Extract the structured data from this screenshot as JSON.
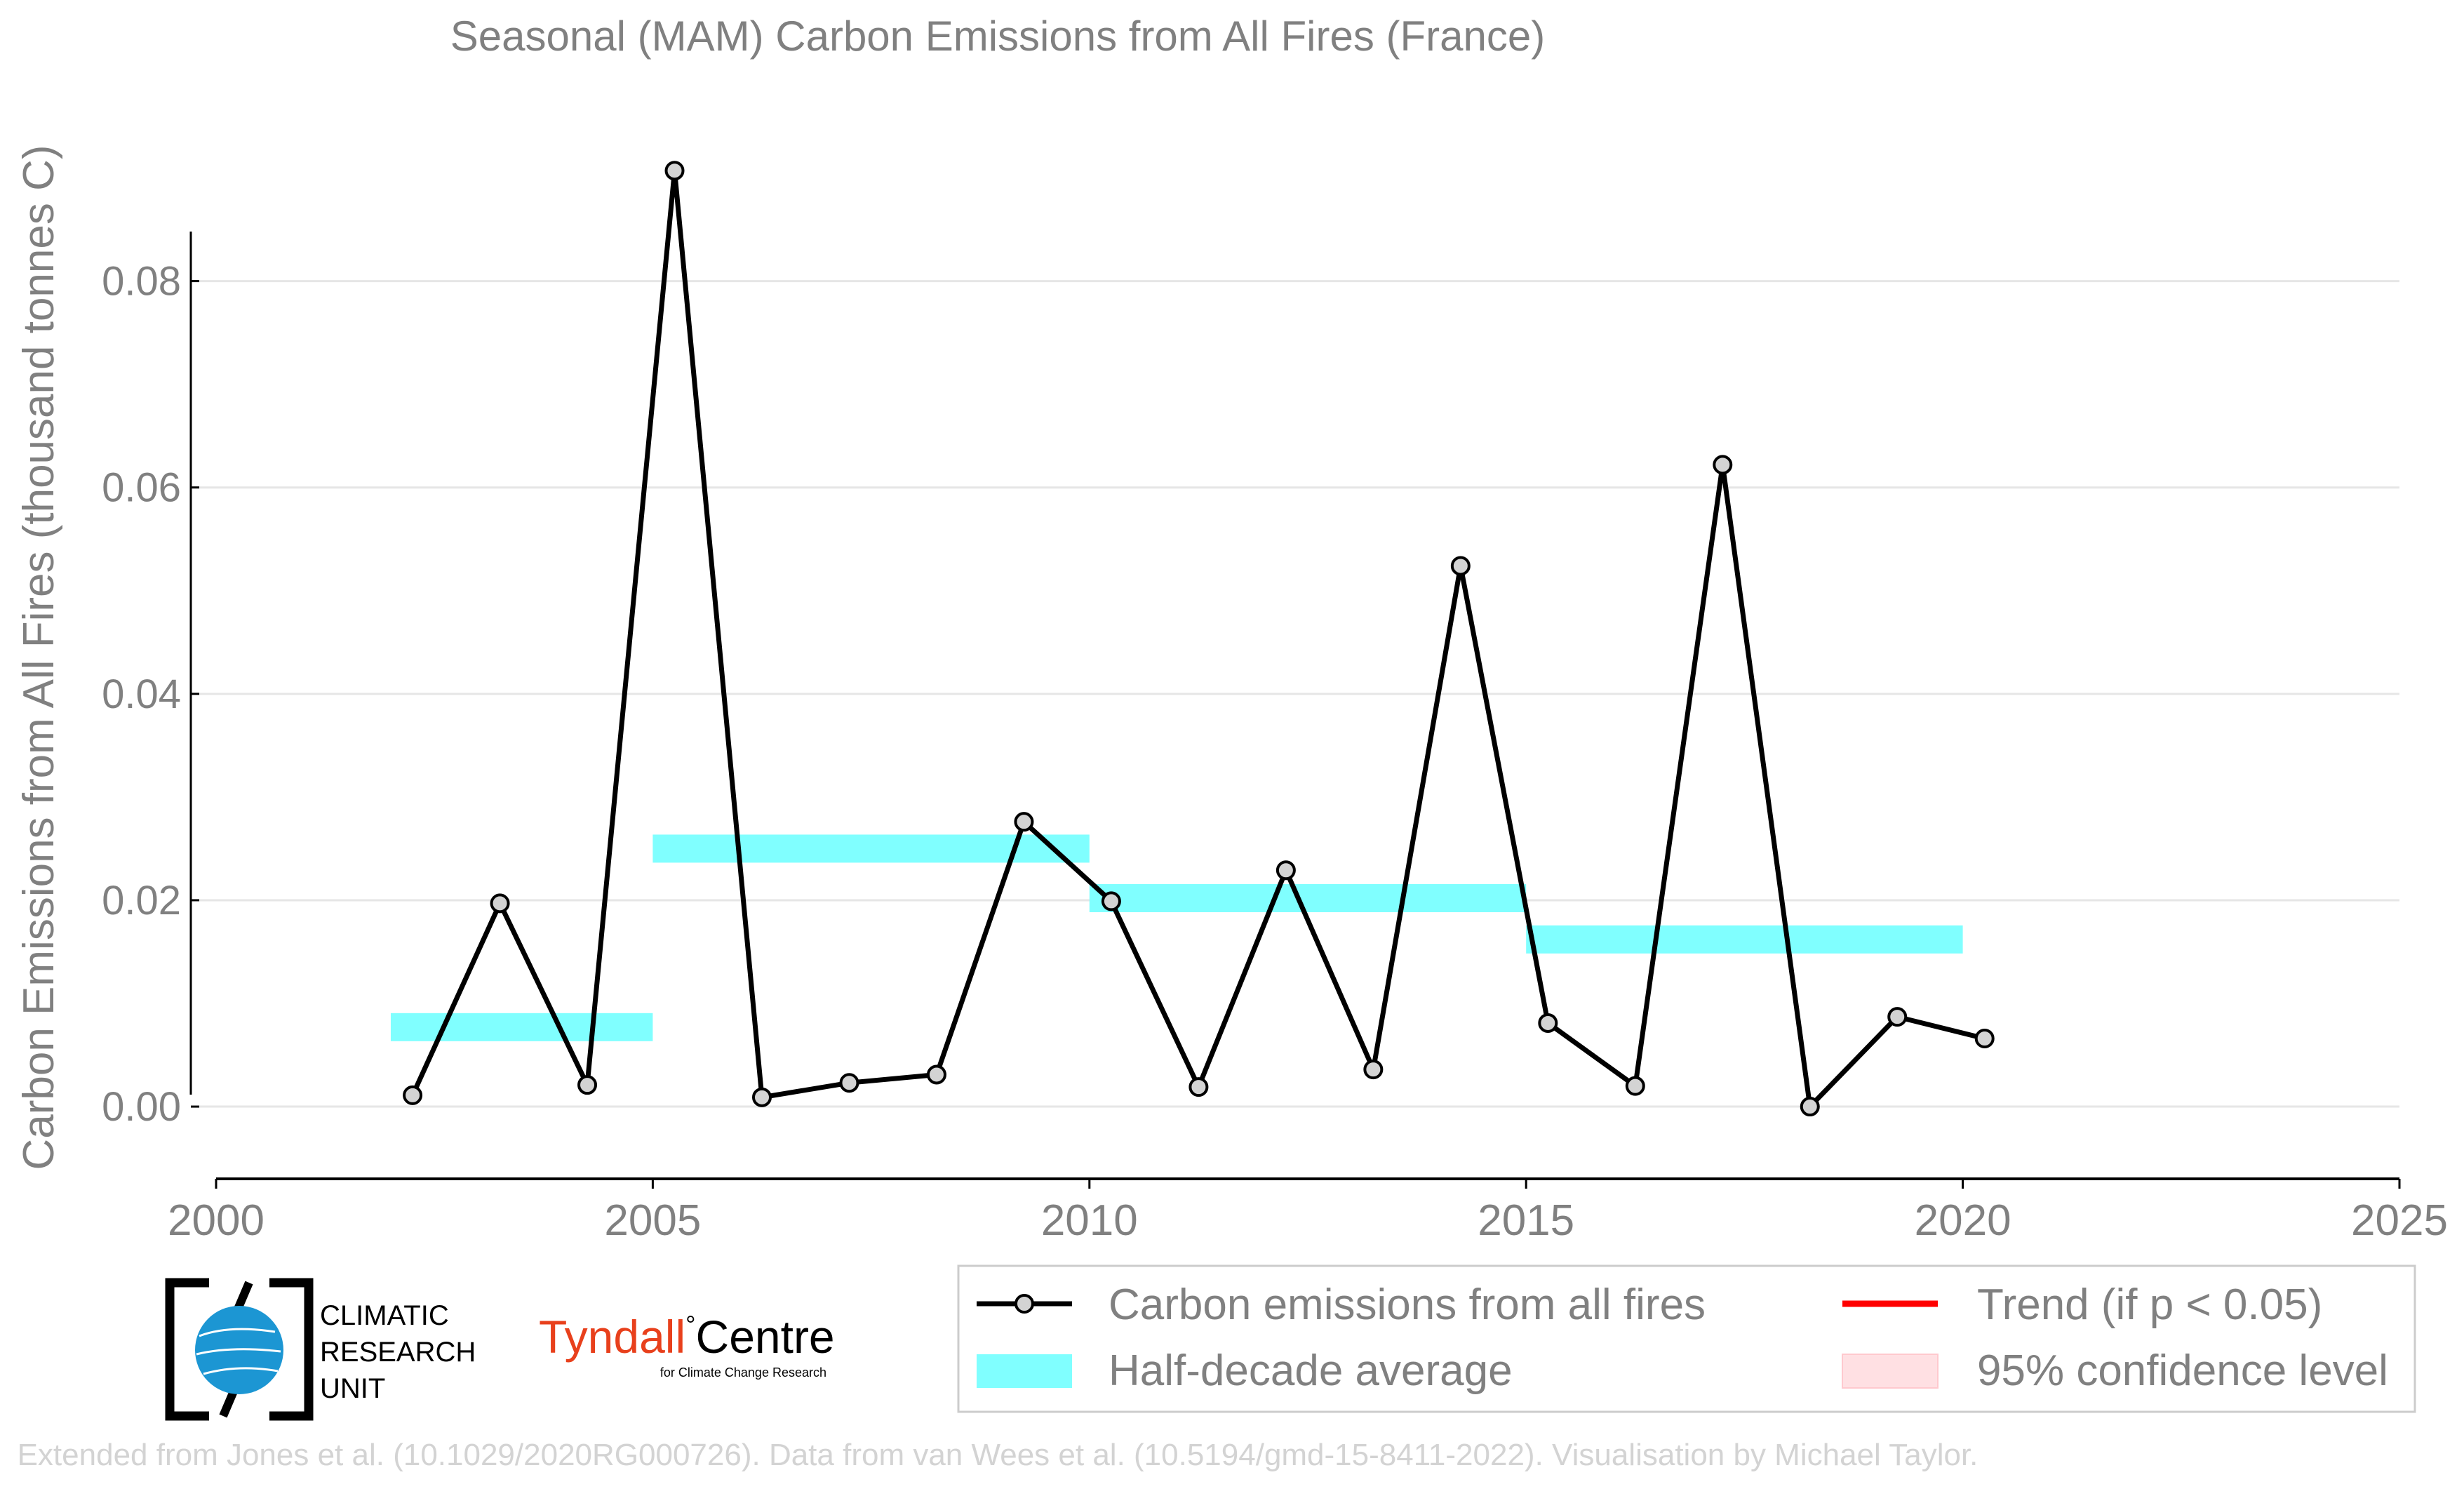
{
  "chart_data": {
    "type": "line",
    "title": "Seasonal (MAM) Carbon Emissions from All Fires (France)",
    "xlabel": "",
    "ylabel": "Carbon Emissions from All Fires (thousand tonnes C)",
    "xlim": [
      2000,
      2025
    ],
    "ylim": [
      -0.007,
      0.095
    ],
    "x_ticks": [
      "2000",
      "2005",
      "2010",
      "2015",
      "2020",
      "2025"
    ],
    "y_ticks": [
      "0.00",
      "0.02",
      "0.04",
      "0.06",
      "0.08"
    ],
    "grid": "horizontal",
    "legend_position": "bottom",
    "series": [
      {
        "name": "Carbon emissions from all fires",
        "color": "#000000",
        "marker_fill": "#d3d3d3",
        "x": [
          2002.25,
          2003.25,
          2004.25,
          2005.25,
          2006.25,
          2007.25,
          2008.25,
          2009.25,
          2010.25,
          2011.25,
          2012.25,
          2013.25,
          2014.25,
          2015.25,
          2016.25,
          2017.25,
          2018.25,
          2019.25,
          2020.25
        ],
        "values": [
          0.0011,
          0.0197,
          0.0021,
          0.0907,
          0.0009,
          0.0023,
          0.0031,
          0.0276,
          0.0199,
          0.0019,
          0.0229,
          0.0036,
          0.0524,
          0.0081,
          0.002,
          0.0622,
          0.0,
          0.0087,
          0.0066
        ]
      }
    ],
    "half_decade_average": {
      "name": "Half-decade average",
      "color": "#80ffff",
      "bars": [
        {
          "x_start": 2002,
          "x_end": 2005,
          "value": 0.0077
        },
        {
          "x_start": 2005,
          "x_end": 2010,
          "value": 0.025
        },
        {
          "x_start": 2010,
          "x_end": 2015,
          "value": 0.0202
        },
        {
          "x_start": 2015,
          "x_end": 2020,
          "value": 0.0162
        }
      ]
    },
    "legend": [
      {
        "label": "Carbon emissions from all fires",
        "kind": "line-marker",
        "color": "#000000"
      },
      {
        "label": "Trend (if p < 0.05)",
        "kind": "line",
        "color": "#ff0000"
      },
      {
        "label": "Half-decade average",
        "kind": "band",
        "color": "#80ffff"
      },
      {
        "label": "95% confidence level",
        "kind": "band",
        "color": "#ffe0e3"
      }
    ]
  },
  "logos": {
    "cru_lines": [
      "CLIMATIC",
      "RESEARCH",
      "UNIT"
    ],
    "tyndall_name": "Tyndall",
    "tyndall_suffix": "Centre",
    "tyndall_sub": "for Climate Change Research"
  },
  "credit": "Extended from Jones et al. (10.1029/2020RG000726). Data from van Wees et al. (10.5194/gmd-15-8411-2022). Visualisation by Michael Taylor."
}
